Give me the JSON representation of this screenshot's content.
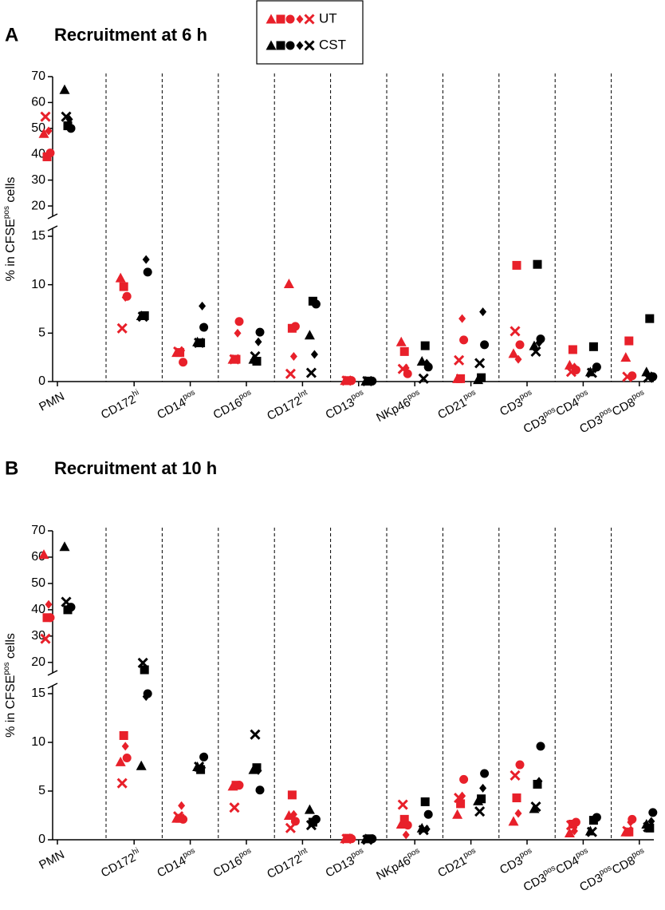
{
  "chart_data": [
    {
      "type": "dot",
      "panel": "A",
      "title": "Recruitment at 6 h",
      "ylabel": [
        "% in CFSE",
        "pos",
        " cells"
      ],
      "markers": [
        "triangle",
        "square",
        "circle",
        "diamond",
        "cross"
      ],
      "categories": [
        [
          "PMN"
        ],
        [
          "CD172",
          "hi"
        ],
        [
          "CD14",
          "pos"
        ],
        [
          "CD16",
          "pos"
        ],
        [
          "CD172",
          "Int"
        ],
        [
          "CD13",
          "pos"
        ],
        [
          "NKp46",
          "pos"
        ],
        [
          "CD21",
          "pos"
        ],
        [
          "CD3",
          "pos"
        ],
        [
          "CD3",
          "pos",
          "CD4",
          "pos"
        ],
        [
          "CD3",
          "pos",
          "CD8",
          "pos"
        ]
      ],
      "ylim": [
        0,
        15
      ],
      "yticks": [
        0,
        5,
        10,
        15
      ],
      "upper_ylim": [
        16,
        70
      ],
      "upper_yticks": [
        20,
        30,
        40,
        50,
        60,
        70
      ],
      "series": [
        {
          "name": "UT",
          "color": "#e8202a",
          "values": [
            [
              48,
              39,
              40.5,
              49,
              54.5
            ],
            [
              10.7,
              9.8,
              8.8,
              8.7,
              5.5
            ],
            [
              3.0,
              3.0,
              2.0,
              3.2,
              3.1
            ],
            [
              2.3,
              2.3,
              6.2,
              5.0,
              2.3
            ],
            [
              10.1,
              5.5,
              5.7,
              2.6,
              0.8
            ],
            [
              0.1,
              0.1,
              0.1,
              0.1,
              0.1
            ],
            [
              4.1,
              3.1,
              0.8,
              1.4,
              1.3
            ],
            [
              0.3,
              0.3,
              4.3,
              6.5,
              2.2
            ],
            [
              2.9,
              12.0,
              3.8,
              2.3,
              5.2
            ],
            [
              1.7,
              3.3,
              1.2,
              1.5,
              1.0
            ],
            [
              2.5,
              4.2,
              0.6,
              0.4,
              0.5
            ]
          ]
        },
        {
          "name": "CST",
          "color": "#000000",
          "values": [
            [
              65,
              51,
              50,
              53.5,
              54.5
            ],
            [
              6.8,
              6.8,
              11.3,
              12.6,
              6.7
            ],
            [
              4.1,
              4.0,
              5.6,
              7.8,
              4.0
            ],
            [
              2.3,
              2.1,
              5.1,
              4.1,
              2.6
            ],
            [
              4.8,
              8.3,
              8.0,
              2.8,
              0.9
            ],
            [
              0.05,
              0.05,
              0.05,
              0.05,
              0.05
            ],
            [
              2.1,
              3.7,
              1.5,
              1.9,
              0.3
            ],
            [
              0.2,
              0.4,
              3.8,
              7.2,
              1.9
            ],
            [
              3.7,
              12.1,
              4.4,
              4.0,
              3.1
            ],
            [
              1.0,
              3.6,
              1.5,
              1.3,
              0.9
            ],
            [
              1.0,
              6.5,
              0.5,
              0.6,
              0.4
            ]
          ]
        }
      ]
    },
    {
      "type": "dot",
      "panel": "B",
      "title": "Recruitment at 10 h",
      "ylabel": [
        "% in CFSE",
        "pos",
        " cells"
      ],
      "markers": [
        "triangle",
        "square",
        "circle",
        "diamond",
        "cross"
      ],
      "categories": [
        [
          "PMN"
        ],
        [
          "CD172",
          "hi"
        ],
        [
          "CD14",
          "pos"
        ],
        [
          "CD16",
          "pos"
        ],
        [
          "CD172",
          "Int"
        ],
        [
          "CD13",
          "pos"
        ],
        [
          "NKp46",
          "pos"
        ],
        [
          "CD21",
          "pos"
        ],
        [
          "CD3",
          "pos"
        ],
        [
          "CD3",
          "pos",
          "CD4",
          "pos"
        ],
        [
          "CD3",
          "pos",
          "CD8",
          "pos"
        ]
      ],
      "ylim": [
        0,
        15
      ],
      "yticks": [
        0,
        5,
        10,
        15
      ],
      "upper_ylim": [
        16,
        70
      ],
      "upper_yticks": [
        20,
        30,
        40,
        50,
        60,
        70
      ],
      "series": [
        {
          "name": "UT",
          "color": "#e8202a",
          "values": [
            [
              61,
              37,
              37,
              42,
              29
            ],
            [
              8.0,
              10.7,
              8.4,
              9.6,
              5.8
            ],
            [
              2.2,
              2.2,
              2.1,
              3.5,
              2.4
            ],
            [
              5.5,
              5.6,
              5.6,
              5.6,
              3.3
            ],
            [
              2.5,
              4.6,
              1.9,
              2.6,
              1.2
            ],
            [
              0.1,
              0.15,
              0.1,
              0.2,
              0.1
            ],
            [
              1.6,
              2.1,
              1.5,
              0.5,
              3.6
            ],
            [
              2.6,
              3.7,
              6.2,
              4.5,
              4.3
            ],
            [
              1.9,
              4.3,
              7.7,
              2.7,
              6.6
            ],
            [
              0.7,
              1.6,
              1.8,
              0.9,
              1.5
            ],
            [
              0.8,
              0.8,
              2.1,
              1.8,
              0.9
            ]
          ]
        },
        {
          "name": "CST",
          "color": "#000000",
          "values": [
            [
              64,
              40,
              41,
              41,
              43
            ],
            [
              7.6,
              17.2,
              15.0,
              14.7,
              19.8
            ],
            [
              7.5,
              7.2,
              8.5,
              7.4,
              7.5
            ],
            [
              7.2,
              7.4,
              5.1,
              7.1,
              10.8
            ],
            [
              3.1,
              1.8,
              2.1,
              1.9,
              1.5
            ],
            [
              0.1,
              0.1,
              0.1,
              0.1,
              0.0
            ],
            [
              1.2,
              3.9,
              2.6,
              1.1,
              1.0
            ],
            [
              4.0,
              4.2,
              6.8,
              5.3,
              2.9
            ],
            [
              3.2,
              5.7,
              9.6,
              6.0,
              3.4
            ],
            [
              0.9,
              2.0,
              2.3,
              2.1,
              0.8
            ],
            [
              1.6,
              1.2,
              2.8,
              1.9,
              1.3
            ]
          ]
        }
      ]
    }
  ]
}
